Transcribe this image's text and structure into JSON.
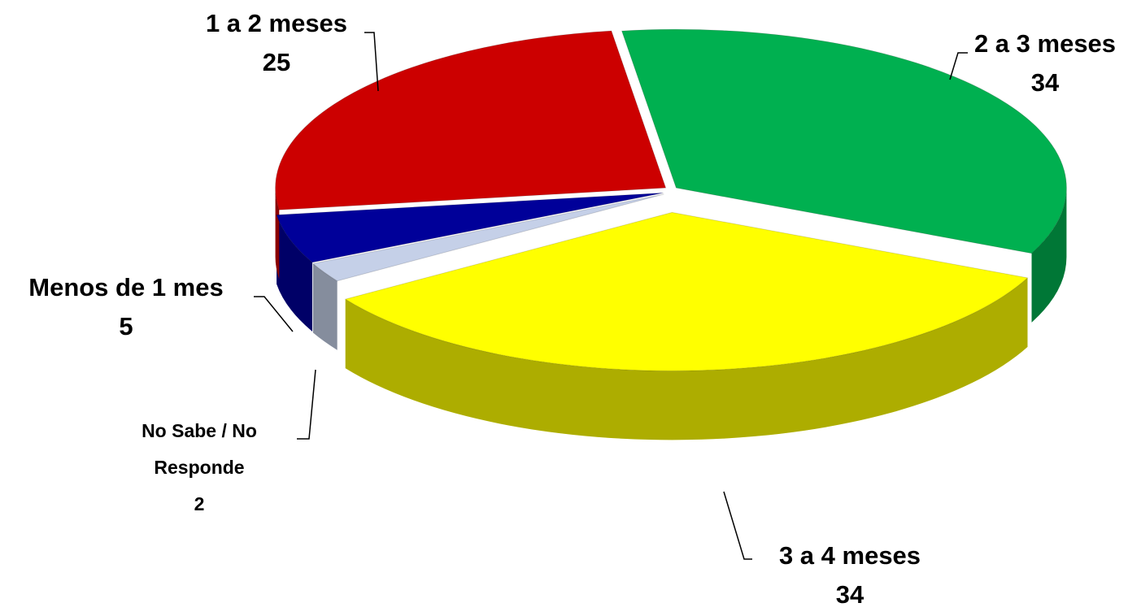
{
  "chart_data": {
    "type": "pie",
    "categories": [
      "2 a 3 meses",
      "3 a 4 meses",
      "No Sabe / No Responde",
      "Menos de 1 mes",
      "1 a 2 meses"
    ],
    "values": [
      34,
      34,
      2,
      5,
      25
    ],
    "colors": [
      "#00b050",
      "#ffff00",
      "#c5d0e8",
      "#000099",
      "#cc0000"
    ]
  }
}
